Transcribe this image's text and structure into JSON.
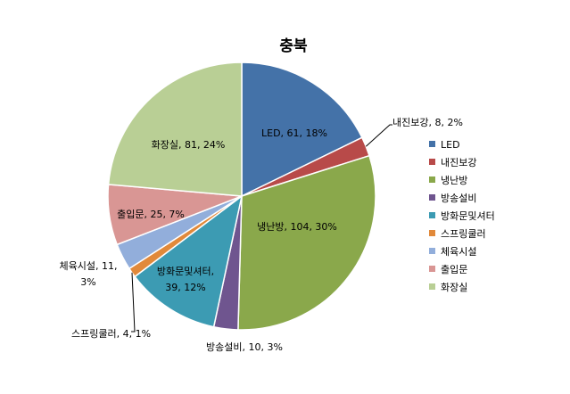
{
  "chart_data": {
    "type": "pie",
    "title": "충북",
    "slices": [
      {
        "label": "LED",
        "value": 61,
        "percent": "18%",
        "color": "#4472a8"
      },
      {
        "label": "내진보강",
        "value": 8,
        "percent": "2%",
        "color": "#b84a49"
      },
      {
        "label": "냉난방",
        "value": 104,
        "percent": "30%",
        "color": "#8aa84b"
      },
      {
        "label": "방송설비",
        "value": 10,
        "percent": "3%",
        "color": "#6f558f"
      },
      {
        "label": "방화문및셔터",
        "value": 39,
        "percent": "12%",
        "color": "#3c9bb3"
      },
      {
        "label": "스프링쿨러",
        "value": 4,
        "percent": "1%",
        "color": "#e1893a"
      },
      {
        "label": "체육시설",
        "value": 11,
        "percent": "3%",
        "color": "#92aedb"
      },
      {
        "label": "출입문",
        "value": 25,
        "percent": "7%",
        "color": "#d99694"
      },
      {
        "label": "화장실",
        "value": 81,
        "percent": "24%",
        "color": "#b9cf95"
      }
    ],
    "legend_position": "right",
    "data_labels": [
      [
        "LED, 61, 18%"
      ],
      [
        "내진보강, 8, 2%"
      ],
      [
        "냉난방, 104, 30%"
      ],
      [
        "방송설비, 10, 3%"
      ],
      [
        "방화문및셔터,",
        "39, 12%"
      ],
      [
        "스프링쿨러, 4, 1%"
      ],
      [
        "체육시설, 11,",
        "3%"
      ],
      [
        "출입문, 25, 7%"
      ],
      [
        "화장실, 81, 24%"
      ]
    ]
  }
}
